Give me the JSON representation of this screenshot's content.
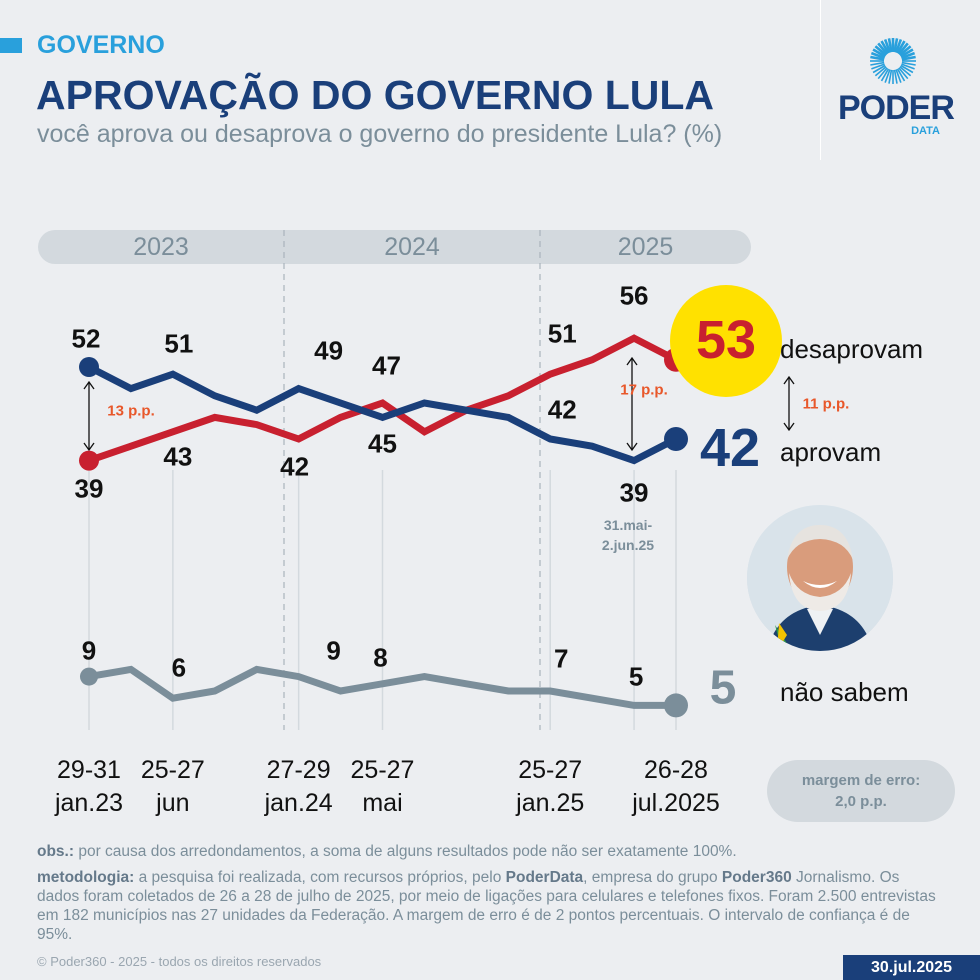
{
  "header": {
    "section": "GOVERNO",
    "title": "APROVAÇÃO DO GOVERNO LULA",
    "subtitle": "você aprova ou desaprova o governo do presidente Lula? (%)",
    "logo_main": "PODER",
    "logo_sub": "DATA"
  },
  "colors": {
    "approve": "#1a3f7a",
    "disapprove": "#c8202f",
    "dont_know": "#7b8e9a",
    "highlight": "#ffe100",
    "accent": "#29a0dc"
  },
  "chart_data": {
    "type": "line",
    "years": [
      "2023",
      "2024",
      "2025"
    ],
    "x_labels": [
      {
        "l1": "29-31",
        "l2": "jan.23"
      },
      {
        "l1": "25-27",
        "l2": "jun"
      },
      {
        "l1": "27-29",
        "l2": "jan.24"
      },
      {
        "l1": "25-27",
        "l2": "mai"
      },
      {
        "l1": "25-27",
        "l2": "jan.25"
      },
      {
        "l1": "26-28",
        "l2": "jul.2025"
      }
    ],
    "x_label_indices": [
      0,
      2,
      5,
      7,
      11,
      14
    ],
    "series": [
      {
        "name": "desaprovam",
        "values": [
          39,
          41,
          43,
          45,
          44,
          42,
          45,
          47,
          43,
          46,
          48,
          51,
          53,
          56,
          53
        ]
      },
      {
        "name": "aprovam",
        "values": [
          52,
          49,
          51,
          48,
          46,
          49,
          47,
          45,
          47,
          46,
          45,
          42,
          41,
          39,
          42
        ]
      },
      {
        "name": "não sabem",
        "values": [
          9,
          10,
          6,
          7,
          10,
          9,
          7,
          8,
          9,
          8,
          7,
          7,
          6,
          5,
          5
        ]
      }
    ],
    "data_labels": {
      "disapprove": [
        {
          "i": 0,
          "v": "39"
        },
        {
          "i": 2,
          "v": "43"
        },
        {
          "i": 5,
          "v": "42"
        },
        {
          "i": 7,
          "v": "47"
        },
        {
          "i": 11,
          "v": "51"
        },
        {
          "i": 13,
          "v": "56"
        }
      ],
      "approve": [
        {
          "i": 0,
          "v": "52"
        },
        {
          "i": 2,
          "v": "51"
        },
        {
          "i": 5,
          "v": "49"
        },
        {
          "i": 7,
          "v": "45"
        },
        {
          "i": 11,
          "v": "42"
        },
        {
          "i": 13,
          "v": "39"
        }
      ],
      "dont_know": [
        {
          "i": 0,
          "v": "9"
        },
        {
          "i": 2,
          "v": "6"
        },
        {
          "i": 5,
          "v": "9"
        },
        {
          "i": 7,
          "v": "8"
        },
        {
          "i": 11,
          "v": "7"
        },
        {
          "i": 13,
          "v": "5"
        }
      ]
    },
    "final": {
      "disapprove": "53",
      "approve": "42",
      "dont_know": "5"
    },
    "differences": {
      "first": "13 p.p.",
      "peak": "17 p.p.",
      "latest": "11 p.p."
    },
    "peak_date": [
      "31.mai-",
      "2.jun.25"
    ],
    "margin": [
      "margem de erro:",
      "2,0 p.p."
    ]
  },
  "footer": {
    "obs_label": "obs.:",
    "obs": " por causa dos arredondamentos, a soma de alguns resultados pode não ser exatamente 100%.",
    "method_label": "metodologia:",
    "method_1": " a pesquisa foi realizada, com recursos próprios, pelo ",
    "method_b1": "PoderData",
    "method_2": ", empresa do grupo ",
    "method_b2": "Poder360",
    "method_3": " Jornalismo. Os dados foram coletados de 26 a 28 de julho de 2025, por meio de ligações para celulares e telefones fixos. Foram 2.500 entrevistas em 182 municípios nas 27 unidades da Federação. A margem de erro é de 2 pontos percentuais. O intervalo de confiança é de 95%.",
    "copyright": "© Poder360 - 2025 - todos os direitos reservados",
    "date": "30.jul.2025"
  }
}
